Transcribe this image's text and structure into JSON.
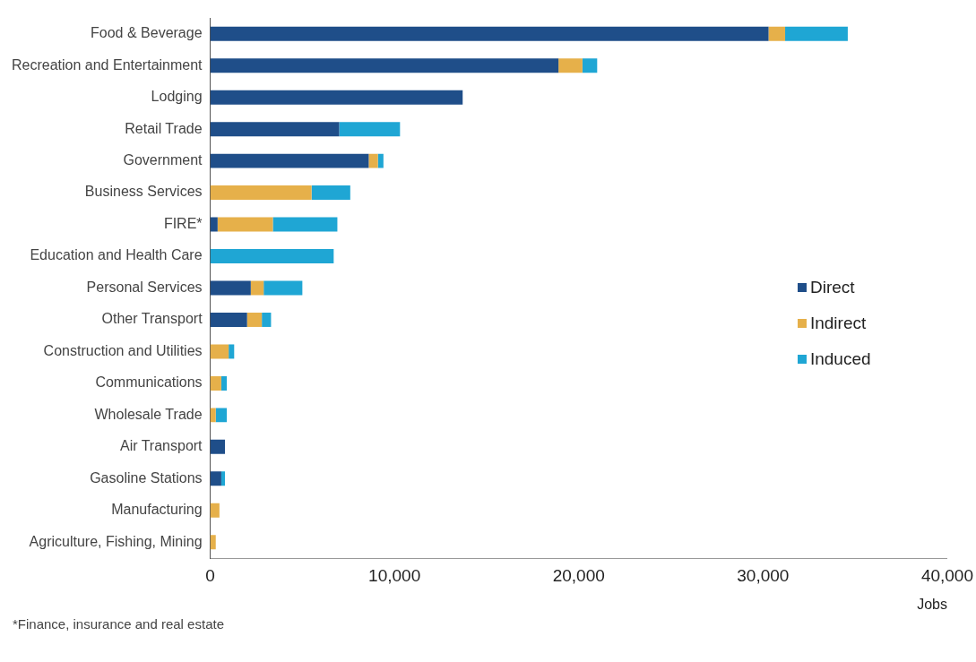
{
  "chart_data": {
    "type": "bar",
    "orientation": "horizontal",
    "stacked": true,
    "categories": [
      "Food & Beverage",
      "Recreation and Entertainment",
      "Lodging",
      "Retail Trade",
      "Government",
      "Business Services",
      "FIRE*",
      "Education and Health Care",
      "Personal Services",
      "Other Transport",
      "Construction and Utilities",
      "Communications",
      "Wholesale Trade",
      "Air Transport",
      "Gasoline Stations",
      "Manufacturing",
      "Agriculture, Fishing, Mining"
    ],
    "series": [
      {
        "name": "Direct",
        "color": "#1f4e89",
        "values": [
          30300,
          18900,
          13700,
          7000,
          8600,
          0,
          400,
          0,
          2200,
          2000,
          0,
          0,
          0,
          800,
          600,
          0,
          0
        ]
      },
      {
        "name": "Indirect",
        "color": "#e6b04a",
        "values": [
          900,
          1300,
          0,
          0,
          500,
          5500,
          3000,
          0,
          700,
          800,
          1000,
          600,
          300,
          0,
          0,
          500,
          300
        ]
      },
      {
        "name": "Induced",
        "color": "#1fa6d4",
        "values": [
          3400,
          800,
          0,
          3300,
          300,
          2100,
          3500,
          6700,
          2100,
          500,
          300,
          300,
          600,
          0,
          200,
          0,
          0
        ]
      }
    ],
    "xlim": [
      0,
      40000
    ],
    "xticks": [
      {
        "value": 0,
        "label": "0"
      },
      {
        "value": 10000,
        "label": "10,000"
      },
      {
        "value": 20000,
        "label": "20,000"
      },
      {
        "value": 30000,
        "label": "30,000"
      },
      {
        "value": 40000,
        "label": "40,000"
      }
    ],
    "xlabel": "Jobs",
    "legend": "right",
    "grid": false,
    "annotations": [
      "*Finance, insurance and real estate"
    ]
  }
}
